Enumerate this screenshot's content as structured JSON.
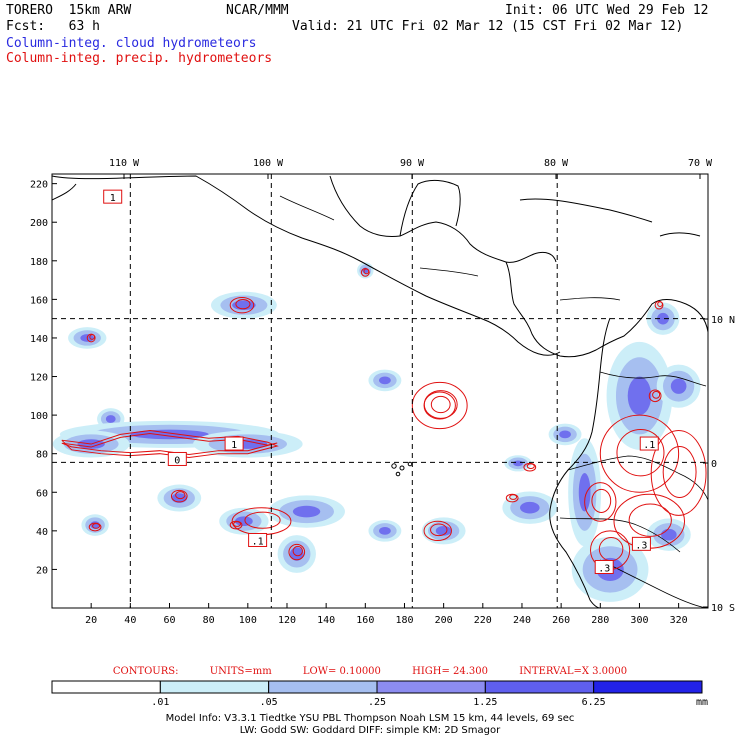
{
  "header": {
    "model": "TORERO  15km ARW",
    "center": "NCAR/MMM",
    "init": "Init: 06 UTC Wed 29 Feb 12",
    "fcst": "Fcst:   63 h",
    "valid": "Valid: 21 UTC Fri 02 Mar 12 (15 CST Fri 02 Mar 12)",
    "field1": "Column-integ. cloud hydrometeors",
    "field2": "Column-integ. precip. hydrometeors"
  },
  "colors": {
    "field1": "#2a2ae0",
    "field2": "#e01010",
    "contour": "#e01010",
    "coastline": "#000000",
    "gridline": "#000000"
  },
  "axes": {
    "top_lon_labels": [
      "110 W",
      "100 W",
      "90 W",
      "80 W",
      "70 W"
    ],
    "right_lat_labels": [
      "10 N",
      "0",
      "10 S"
    ],
    "bottom_ticks": [
      "20",
      "40",
      "60",
      "80",
      "100",
      "120",
      "140",
      "160",
      "180",
      "200",
      "220",
      "240",
      "260",
      "280",
      "300",
      "320"
    ],
    "left_ticks": [
      "20",
      "40",
      "60",
      "80",
      "100",
      "120",
      "140",
      "160",
      "180",
      "200",
      "220"
    ],
    "x_range": [
      0,
      335
    ],
    "y_range": [
      0,
      225
    ],
    "dashed_lon_grid_x": [
      40,
      112,
      184,
      258
    ],
    "dashed_lat_grid_y": [
      75.5,
      150
    ]
  },
  "contour_labels": [
    {
      "text": "1",
      "x": 31,
      "y": 213
    },
    {
      "text": "1",
      "x": 93,
      "y": 85
    },
    {
      "text": "0",
      "x": 64,
      "y": 77
    },
    {
      "text": ".1",
      "x": 105,
      "y": 35
    },
    {
      "text": ".1",
      "x": 305,
      "y": 85
    },
    {
      "text": ".3",
      "x": 301,
      "y": 33
    },
    {
      "text": ".3",
      "x": 282,
      "y": 21
    }
  ],
  "contour_info": {
    "contours": "CONTOURS:",
    "units": "UNITS=mm",
    "low": "LOW= 0.10000",
    "high": "HIGH=  24.300",
    "interval": "INTERVAL=X  3.0000"
  },
  "colorbar": {
    "labels": [
      ".01",
      ".05",
      ".25",
      "1.25",
      "6.25"
    ],
    "colors": [
      "#ffffff",
      "#cceef8",
      "#a6bff0",
      "#8c8cf0",
      "#5f5fee",
      "#2222e8"
    ],
    "unit": "mm"
  },
  "model_info": {
    "line1": "Model Info: V3.3.1    Tiedtke YSU PBL   Thompson     Noah LSM  15 km,   44 levels,   69 sec",
    "line2": "LW: Godd SW: Goddard DIFF: simple KM: 2D Smagor"
  },
  "map_features": {
    "cloud_blobs": [
      {
        "x": 98,
        "y": 157,
        "rx": 12,
        "ry": 5
      },
      {
        "x": 18,
        "y": 140,
        "rx": 7,
        "ry": 4
      },
      {
        "x": 160,
        "y": 175,
        "rx": 3,
        "ry": 3
      },
      {
        "x": 170,
        "y": 118,
        "rx": 6,
        "ry": 4
      },
      {
        "x": 30,
        "y": 98,
        "rx": 5,
        "ry": 4
      },
      {
        "x": 60,
        "y": 90,
        "rx": 40,
        "ry": 5
      },
      {
        "x": 100,
        "y": 85,
        "rx": 20,
        "ry": 5
      },
      {
        "x": 20,
        "y": 85,
        "rx": 14,
        "ry": 5
      },
      {
        "x": 65,
        "y": 57,
        "rx": 8,
        "ry": 5
      },
      {
        "x": 130,
        "y": 50,
        "rx": 14,
        "ry": 6
      },
      {
        "x": 125,
        "y": 28,
        "rx": 7,
        "ry": 7
      },
      {
        "x": 98,
        "y": 45,
        "rx": 9,
        "ry": 5
      },
      {
        "x": 22,
        "y": 43,
        "rx": 5,
        "ry": 4
      },
      {
        "x": 170,
        "y": 40,
        "rx": 6,
        "ry": 4
      },
      {
        "x": 200,
        "y": 40,
        "rx": 8,
        "ry": 5
      },
      {
        "x": 244,
        "y": 52,
        "rx": 10,
        "ry": 6
      },
      {
        "x": 238,
        "y": 75,
        "rx": 5,
        "ry": 3
      },
      {
        "x": 262,
        "y": 90,
        "rx": 6,
        "ry": 4
      },
      {
        "x": 272,
        "y": 60,
        "rx": 6,
        "ry": 20
      },
      {
        "x": 285,
        "y": 20,
        "rx": 14,
        "ry": 12
      },
      {
        "x": 300,
        "y": 110,
        "rx": 12,
        "ry": 20
      },
      {
        "x": 320,
        "y": 115,
        "rx": 8,
        "ry": 8
      },
      {
        "x": 312,
        "y": 150,
        "rx": 6,
        "ry": 6
      },
      {
        "x": 315,
        "y": 38,
        "rx": 8,
        "ry": 6
      }
    ],
    "precip_rings": [
      {
        "x": 97,
        "y": 157,
        "rx": 6,
        "ry": 4
      },
      {
        "x": 160,
        "y": 174,
        "rx": 2,
        "ry": 2
      },
      {
        "x": 20,
        "y": 140,
        "rx": 2,
        "ry": 2
      },
      {
        "x": 198,
        "y": 105,
        "rx": 14,
        "ry": 12
      },
      {
        "x": 198,
        "y": 105,
        "rx": 8,
        "ry": 7
      },
      {
        "x": 65,
        "y": 58,
        "rx": 4,
        "ry": 3
      },
      {
        "x": 22,
        "y": 42,
        "rx": 3,
        "ry": 2
      },
      {
        "x": 125,
        "y": 29,
        "rx": 4,
        "ry": 4
      },
      {
        "x": 94,
        "y": 43,
        "rx": 3,
        "ry": 2
      },
      {
        "x": 197,
        "y": 40,
        "rx": 7,
        "ry": 5
      },
      {
        "x": 235,
        "y": 57,
        "rx": 3,
        "ry": 2
      },
      {
        "x": 244,
        "y": 73,
        "rx": 3,
        "ry": 2
      },
      {
        "x": 107,
        "y": 45,
        "rx": 15,
        "ry": 7
      },
      {
        "x": 310,
        "y": 157,
        "rx": 2,
        "ry": 2
      },
      {
        "x": 308,
        "y": 110,
        "rx": 3,
        "ry": 3
      },
      {
        "x": 300,
        "y": 80,
        "rx": 20,
        "ry": 20
      },
      {
        "x": 305,
        "y": 45,
        "rx": 18,
        "ry": 14
      },
      {
        "x": 285,
        "y": 30,
        "rx": 10,
        "ry": 10
      },
      {
        "x": 320,
        "y": 70,
        "rx": 14,
        "ry": 22
      },
      {
        "x": 280,
        "y": 55,
        "rx": 8,
        "ry": 10
      }
    ],
    "precip_band": [
      [
        5,
        87
      ],
      [
        20,
        85
      ],
      [
        35,
        90
      ],
      [
        50,
        92
      ],
      [
        65,
        90
      ],
      [
        80,
        88
      ],
      [
        95,
        89
      ],
      [
        110,
        86
      ],
      [
        115,
        84
      ],
      [
        100,
        80
      ],
      [
        85,
        80
      ],
      [
        70,
        78
      ],
      [
        55,
        80
      ],
      [
        40,
        79
      ],
      [
        25,
        80
      ],
      [
        10,
        82
      ],
      [
        5,
        87
      ]
    ]
  }
}
